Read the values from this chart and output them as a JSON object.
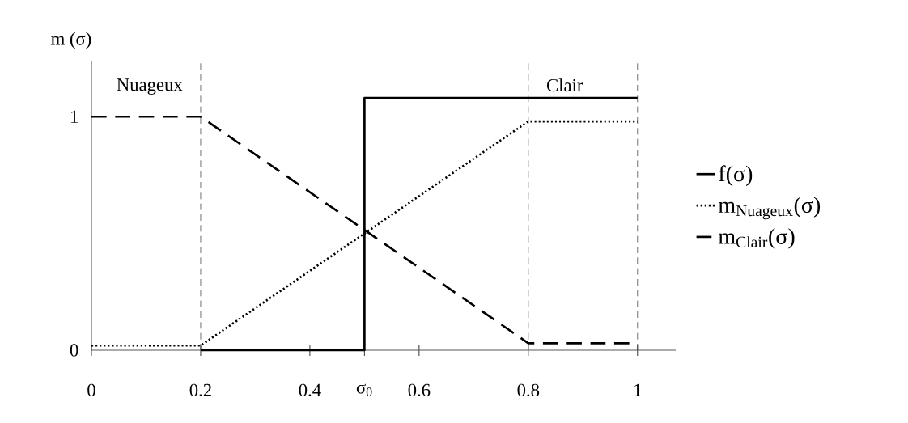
{
  "chart_data": {
    "type": "line",
    "ylabel": "m (σ)",
    "xlim": [
      0,
      1.07
    ],
    "ylim": [
      0,
      1.24
    ],
    "xticks": [
      {
        "value": 0,
        "label": "0"
      },
      {
        "value": 0.2,
        "label": "0.2"
      },
      {
        "value": 0.4,
        "label": "0.4"
      },
      {
        "value": 0.5,
        "label": "σ$_{0}$"
      },
      {
        "value": 0.6,
        "label": "0.6"
      },
      {
        "value": 0.8,
        "label": "0.8"
      },
      {
        "value": 1,
        "label": "1"
      }
    ],
    "yticks": [
      {
        "value": 0,
        "label": "0"
      },
      {
        "value": 1,
        "label": "1"
      }
    ],
    "series": [
      {
        "name": "f(σ)",
        "color": "#000000",
        "line_style": "solid",
        "x": [
          0.2,
          0.5,
          0.5,
          1
        ],
        "values": [
          0,
          0,
          1.08,
          1.08
        ]
      },
      {
        "name": "m$_{Nuageux}$(σ)",
        "color": "#000000",
        "line_style": "dotted",
        "x": [
          0,
          0.2,
          0.8,
          1
        ],
        "values": [
          0.02,
          0.02,
          0.98,
          0.98
        ]
      },
      {
        "name": "m$_{Clair}$(σ)",
        "color": "#000000",
        "line_style": "dashed",
        "x": [
          0,
          0.2,
          0.8,
          1
        ],
        "values": [
          1,
          1,
          0.03,
          0.03
        ]
      }
    ],
    "ref_lines": [
      {
        "axis": "x",
        "value": 0.2,
        "label": "Nuageux",
        "line_style": "dashed"
      },
      {
        "axis": "x",
        "value": 0.8,
        "label": "Clair",
        "line_style": "dashed"
      },
      {
        "axis": "x",
        "value": 1,
        "line_style": "dashed"
      }
    ],
    "grid": false,
    "legend": "right"
  }
}
